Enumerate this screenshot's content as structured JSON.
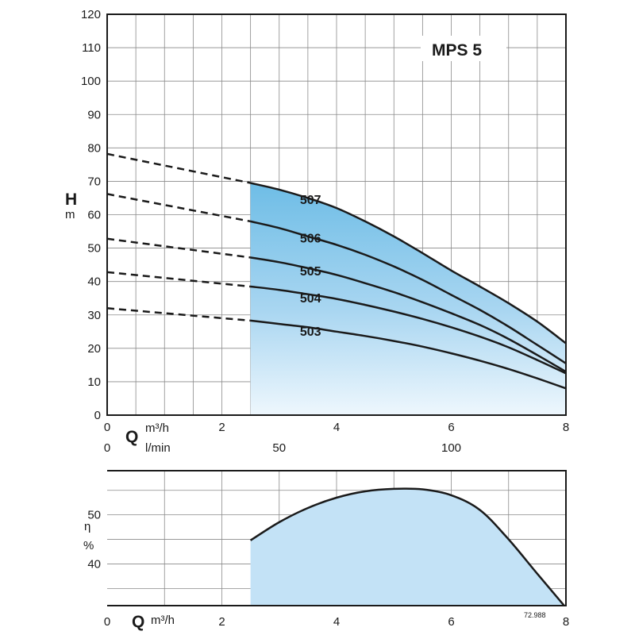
{
  "chart_data": [
    {
      "type": "line",
      "title": "MPS 5",
      "ylabel": "H",
      "yunit": "m",
      "xlabel": "Q",
      "xunit": "m³/h",
      "x2unit": "l/min",
      "xlim": [
        0,
        8
      ],
      "ylim": [
        0,
        120
      ],
      "xticks": [
        0,
        2,
        4,
        6,
        8
      ],
      "yticks": [
        0,
        10,
        20,
        30,
        40,
        50,
        60,
        70,
        80,
        90,
        100,
        110,
        120
      ],
      "x2ticks": [
        0,
        50,
        100
      ],
      "grid": true,
      "operating_range_start": 2.5,
      "series": [
        {
          "name": "507",
          "dashed": {
            "x": [
              0,
              2.5
            ],
            "y": [
              78.2,
              69.5
            ]
          },
          "x": [
            2.5,
            3,
            3.5,
            4,
            4.5,
            5,
            5.5,
            6,
            6.5,
            7,
            7.5,
            8
          ],
          "y": [
            69.5,
            67.5,
            65,
            62,
            58,
            53.5,
            48.5,
            43.3,
            38.5,
            33.5,
            28,
            21.5
          ]
        },
        {
          "name": "506",
          "dashed": {
            "x": [
              0,
              2.5
            ],
            "y": [
              66.2,
              58
            ]
          },
          "x": [
            2.5,
            3,
            3.5,
            4,
            4.5,
            5,
            5.5,
            6,
            6.5,
            7,
            7.5,
            8
          ],
          "y": [
            58,
            56,
            53.5,
            51,
            48,
            44.5,
            40.5,
            36,
            31.5,
            26.5,
            21,
            15.5
          ]
        },
        {
          "name": "505",
          "dashed": {
            "x": [
              0,
              2.5
            ],
            "y": [
              52.8,
              47.2
            ]
          },
          "x": [
            2.5,
            3,
            3.5,
            4,
            4.5,
            5,
            5.5,
            6,
            6.5,
            7,
            7.5,
            8
          ],
          "y": [
            47.2,
            45.8,
            44,
            42,
            39.5,
            36.8,
            33.8,
            30.5,
            27,
            22.8,
            18,
            13
          ]
        },
        {
          "name": "504",
          "dashed": {
            "x": [
              0,
              2.5
            ],
            "y": [
              42.8,
              38.5
            ]
          },
          "x": [
            2.5,
            3,
            3.5,
            4,
            4.5,
            5,
            5.5,
            6,
            6.5,
            7,
            7.5,
            8
          ],
          "y": [
            38.5,
            37.5,
            36.2,
            34.8,
            33,
            31,
            28.8,
            26.3,
            23.5,
            20.3,
            16.5,
            12.5
          ]
        },
        {
          "name": "503",
          "dashed": {
            "x": [
              0,
              2.5
            ],
            "y": [
              32,
              28.3
            ]
          },
          "x": [
            2.5,
            3,
            3.5,
            4,
            4.5,
            5,
            5.5,
            6,
            6.5,
            7,
            7.5,
            8
          ],
          "y": [
            28.3,
            27.3,
            26.3,
            25,
            23.7,
            22.2,
            20.5,
            18.5,
            16.3,
            13.8,
            11,
            8
          ]
        }
      ]
    },
    {
      "type": "area",
      "ylabel": "η",
      "yunit": "%",
      "xlabel": "Q",
      "xunit": "m³/h",
      "xlim": [
        0,
        8
      ],
      "ylim": [
        31.5,
        59
      ],
      "xticks": [
        0,
        2,
        4,
        6,
        8
      ],
      "yticks": [
        40,
        50
      ],
      "grid": true,
      "series": [
        {
          "x": [
            2.5,
            3,
            3.5,
            4,
            4.5,
            5,
            5.5,
            6,
            6.5,
            7,
            7.5,
            7.97
          ],
          "y": [
            44.8,
            48.5,
            51.4,
            53.5,
            54.8,
            55.3,
            55.2,
            54,
            51,
            45,
            38,
            31.5
          ]
        }
      ]
    }
  ],
  "drawing_code": "72.988"
}
